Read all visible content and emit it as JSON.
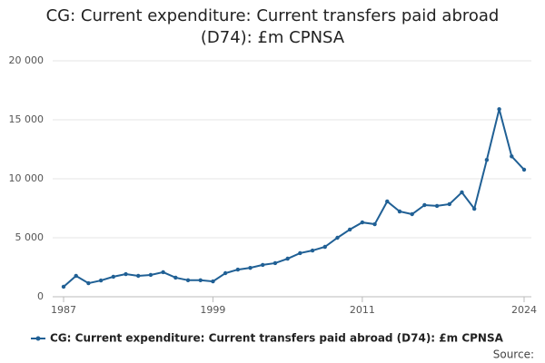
{
  "chart_data": {
    "type": "line",
    "title": "CG: Current expenditure: Current transfers paid abroad (D74): £m CPNSA",
    "source": "Source:",
    "x": [
      1987,
      1988,
      1989,
      1990,
      1991,
      1992,
      1993,
      1994,
      1995,
      1996,
      1997,
      1998,
      1999,
      2000,
      2001,
      2002,
      2003,
      2004,
      2005,
      2006,
      2007,
      2008,
      2009,
      2010,
      2011,
      2012,
      2013,
      2014,
      2015,
      2016,
      2017,
      2018,
      2019,
      2020,
      2021,
      2022,
      2023,
      2024
    ],
    "series": [
      {
        "name": "CG: Current expenditure: Current transfers paid abroad (D74): £m CPNSA",
        "color": "#206095",
        "values": [
          850,
          1770,
          1150,
          1380,
          1700,
          1920,
          1770,
          1850,
          2080,
          1620,
          1400,
          1400,
          1300,
          2000,
          2300,
          2450,
          2700,
          2850,
          3230,
          3700,
          3920,
          4230,
          5000,
          5700,
          6300,
          6150,
          8080,
          7230,
          7000,
          7770,
          7700,
          7850,
          8850,
          7460,
          11600,
          15900,
          11900,
          10770
        ]
      }
    ],
    "xlim": [
      1987,
      2024
    ],
    "xticks": [
      1987,
      1999,
      2011,
      2024
    ],
    "ylim": [
      0,
      20000
    ],
    "yticks": [
      0,
      {
        "value": 5000,
        "label": "5 000"
      },
      {
        "value": 10000,
        "label": "10 000"
      },
      {
        "value": 15000,
        "label": "15 000"
      },
      {
        "value": 20000,
        "label": "20 000"
      }
    ],
    "grid": true
  }
}
